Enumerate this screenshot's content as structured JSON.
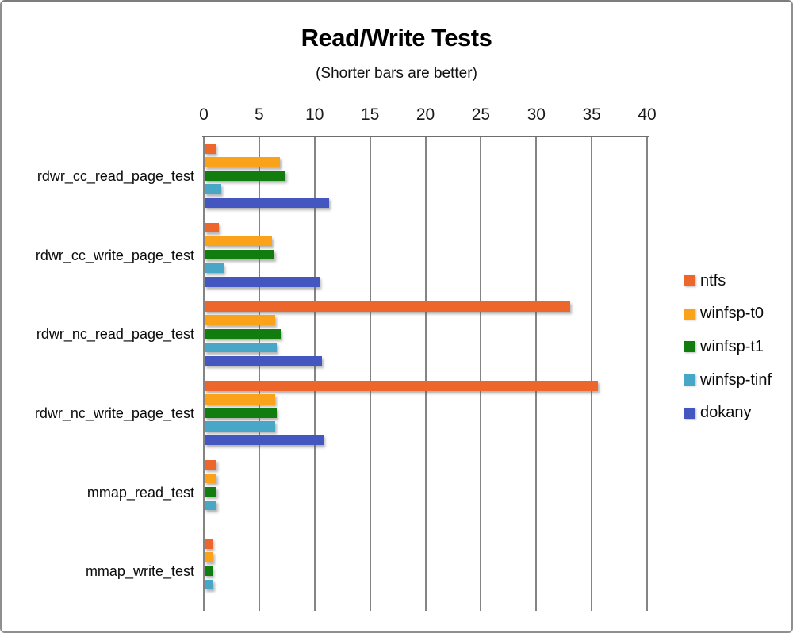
{
  "frame": {
    "background": "#FFFFFF",
    "border_color": "#8F8F8F",
    "gridline_color": "#848484",
    "axis_line_color": "#6E6E6E"
  },
  "chart_data": {
    "type": "bar",
    "orientation": "horizontal",
    "title": "Read/Write Tests",
    "subtitle": "(Shorter bars are better)",
    "value_axis_position": "top",
    "legend_position": "right",
    "grid": true,
    "x_axis": {
      "min": 0,
      "max": 40,
      "tick_step": 5,
      "ticks": [
        0,
        5,
        10,
        15,
        20,
        25,
        30,
        35,
        40
      ]
    },
    "categories": [
      "rdwr_cc_read_page_test",
      "rdwr_cc_write_page_test",
      "rdwr_nc_read_page_test",
      "rdwr_nc_write_page_test",
      "mmap_read_test",
      "mmap_write_test"
    ],
    "series": [
      {
        "name": "ntfs",
        "color": "#ED662C",
        "values": [
          1.0,
          1.3,
          33.0,
          35.5,
          1.1,
          0.7
        ]
      },
      {
        "name": "winfsp-t0",
        "color": "#F9A21A",
        "values": [
          6.8,
          6.1,
          6.4,
          6.4,
          1.1,
          0.8
        ]
      },
      {
        "name": "winfsp-t1",
        "color": "#117D0E",
        "values": [
          7.3,
          6.3,
          6.9,
          6.5,
          1.1,
          0.7
        ]
      },
      {
        "name": "winfsp-tinf",
        "color": "#48A7C6",
        "values": [
          1.5,
          1.7,
          6.5,
          6.4,
          1.1,
          0.8
        ]
      },
      {
        "name": "dokany",
        "color": "#4456C0",
        "values": [
          11.2,
          10.4,
          10.6,
          10.7,
          0,
          0
        ]
      }
    ]
  }
}
